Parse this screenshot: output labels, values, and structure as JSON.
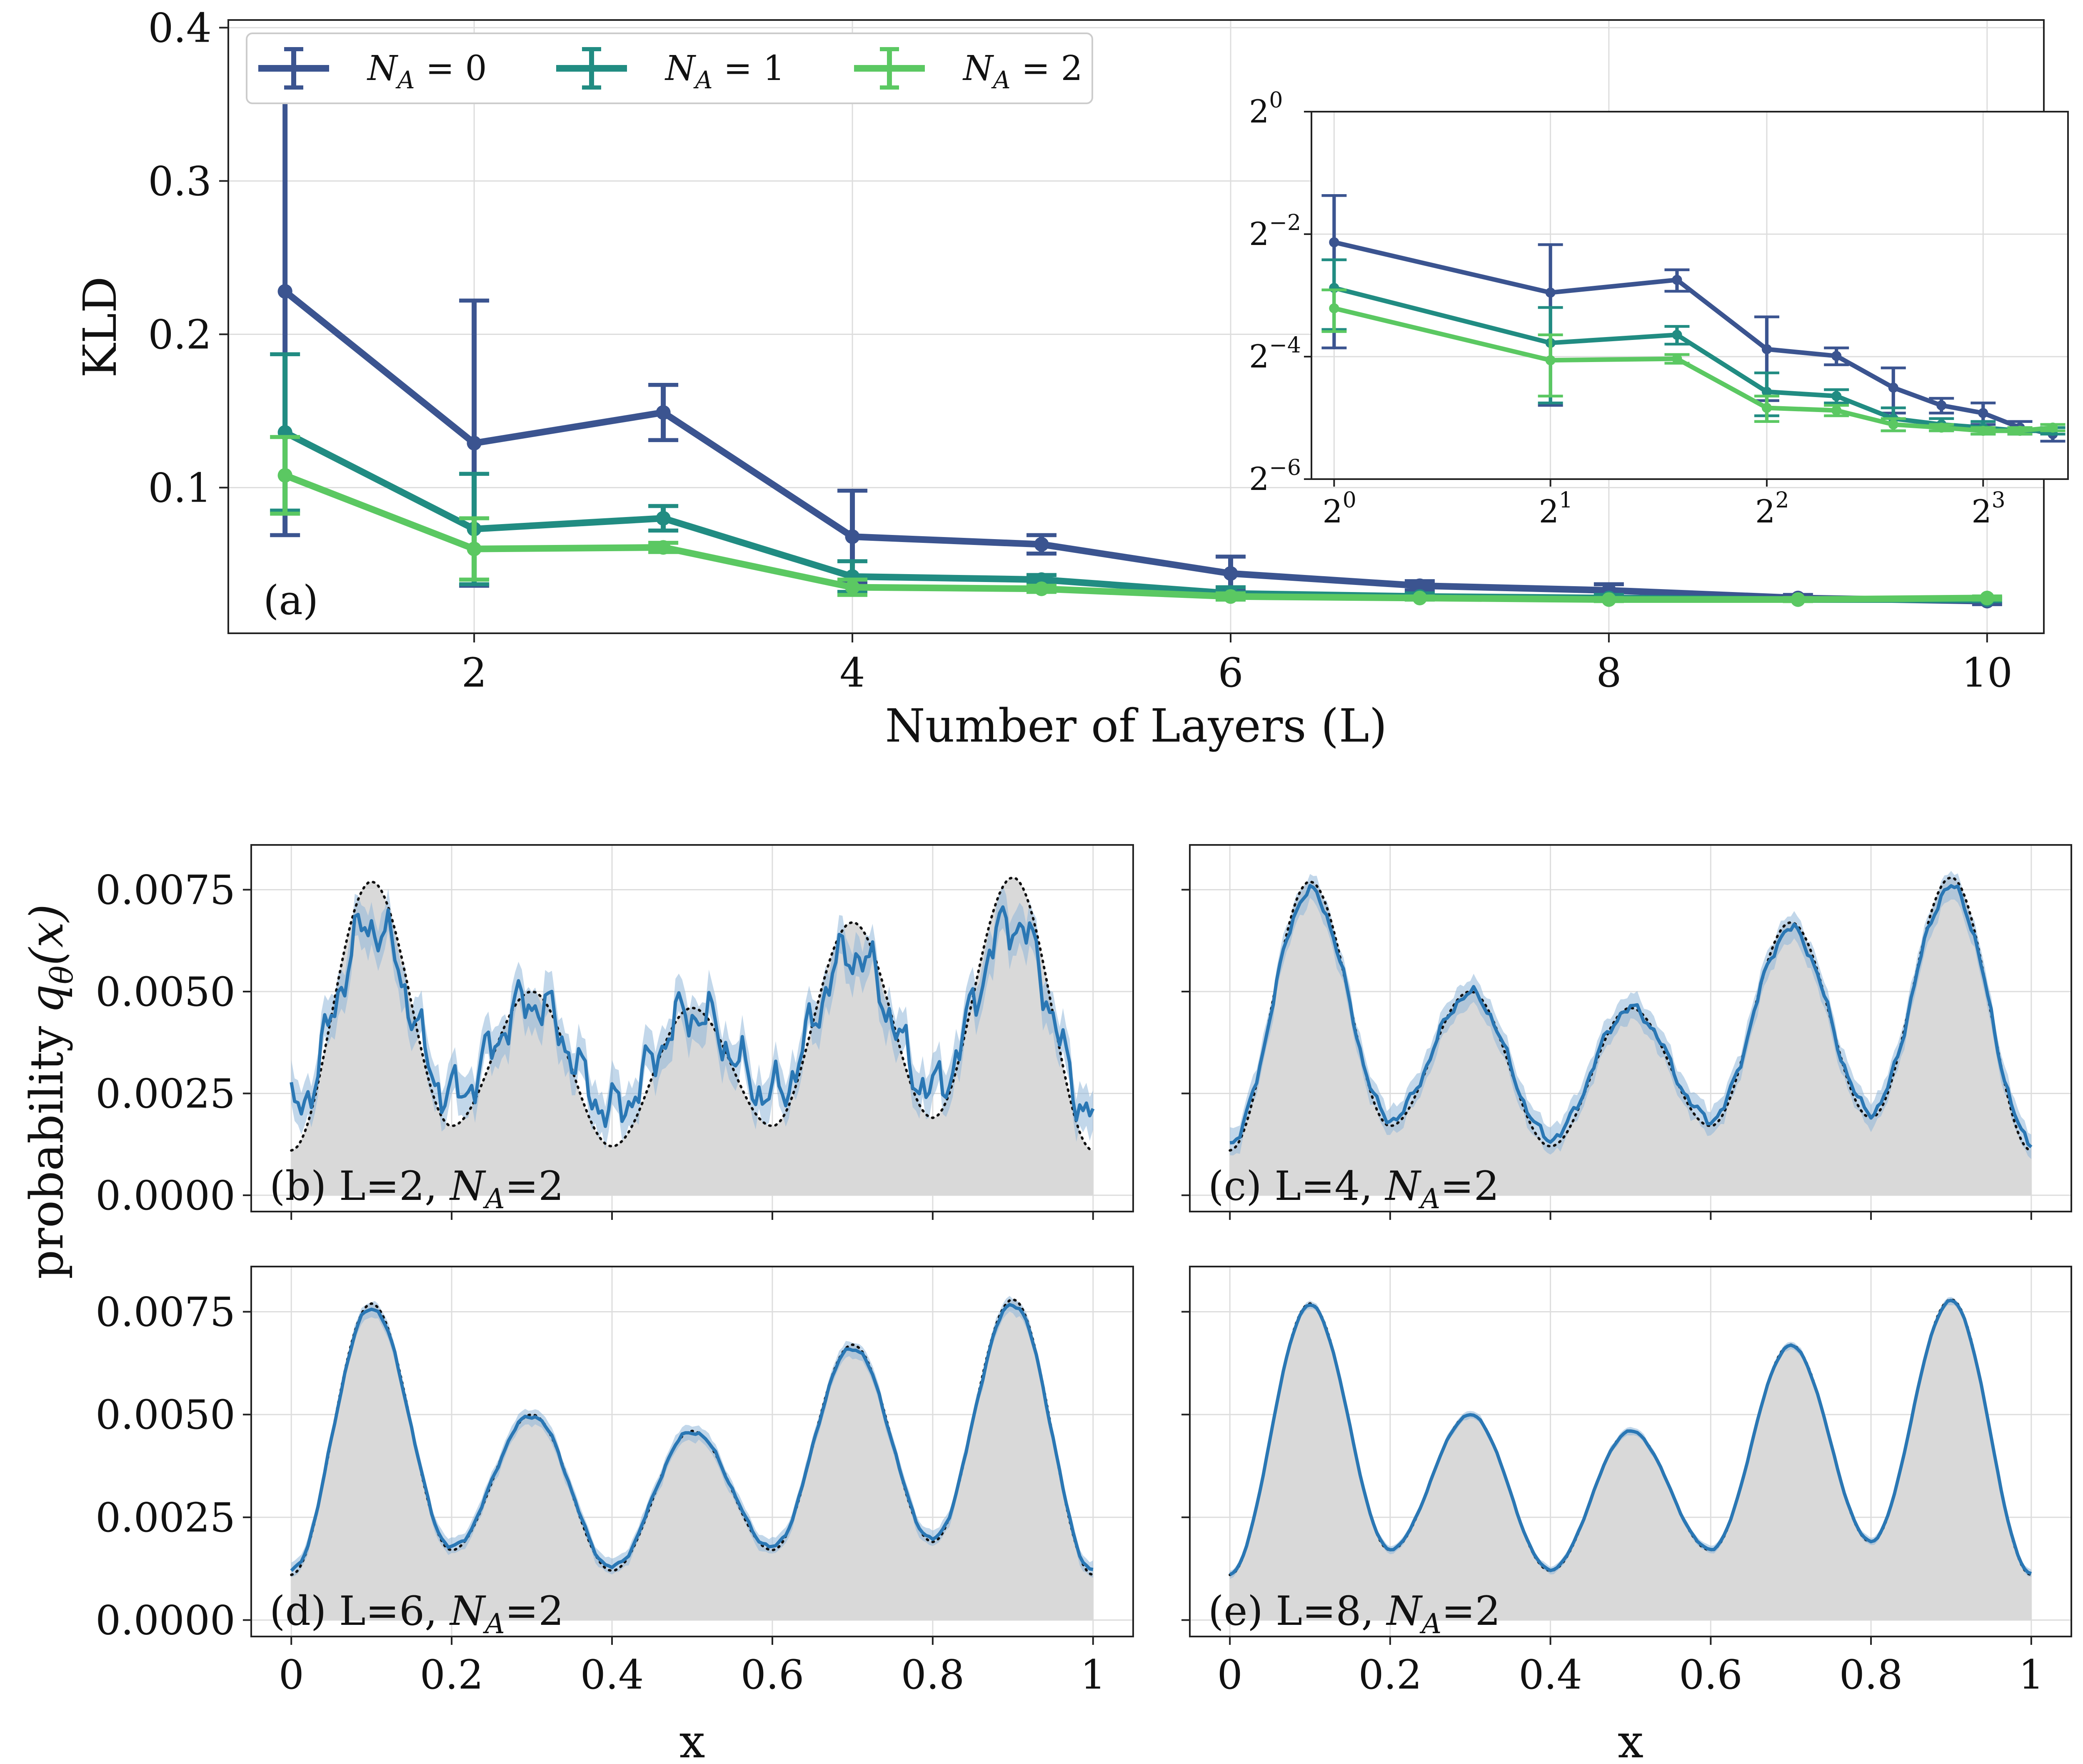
{
  "colors": {
    "N0": "#3b5490",
    "N1": "#218c82",
    "N2": "#5bc862",
    "model": "#2a77b4",
    "band": "#8fb6d8",
    "target_fill": "#d9d9d9",
    "target_line": "#111111"
  },
  "chart_data": [
    {
      "type": "line",
      "panel": "(a)",
      "xlabel": "Number of Layers (L)",
      "ylabel": "KLD",
      "x": [
        1,
        2,
        3,
        4,
        5,
        6,
        7,
        8,
        9,
        10
      ],
      "xlim": [
        0.7,
        10.3
      ],
      "ylim": [
        0.005,
        0.405
      ],
      "xticks": [
        2,
        4,
        6,
        8,
        10
      ],
      "xtick_labels": [
        "2",
        "4",
        "6",
        "8",
        "10"
      ],
      "yticks": [
        0.1,
        0.2,
        0.3,
        0.4
      ],
      "ytick_labels": [
        "0.1",
        "0.2",
        "0.3",
        "0.4"
      ],
      "grid": true,
      "legend": {
        "placement": "top-left",
        "columns": 3
      },
      "series": [
        {
          "key": "N0",
          "name": "N_A = 0",
          "name_sub": [
            "N",
            "A",
            " = 0"
          ],
          "values": [
            0.228,
            0.129,
            0.149,
            0.068,
            0.063,
            0.044,
            0.036,
            0.033,
            0.028,
            0.026
          ],
          "err": [
            0.159,
            0.093,
            0.018,
            0.03,
            0.006,
            0.011,
            0.003,
            0.004,
            0.002,
            0.002
          ]
        },
        {
          "key": "N1",
          "name": "N_A = 1",
          "name_sub": [
            "N",
            "A",
            " = 1"
          ],
          "values": [
            0.136,
            0.073,
            0.08,
            0.042,
            0.04,
            0.031,
            0.029,
            0.028,
            0.027,
            0.027
          ],
          "err": [
            0.051,
            0.036,
            0.008,
            0.01,
            0.003,
            0.004,
            0.002,
            0.002,
            0.001,
            0.001
          ]
        },
        {
          "key": "N2",
          "name": "N_A = 2",
          "name_sub": [
            "N",
            "A",
            " = 2"
          ],
          "values": [
            0.108,
            0.06,
            0.061,
            0.035,
            0.034,
            0.029,
            0.028,
            0.027,
            0.027,
            0.028
          ],
          "err": [
            0.025,
            0.02,
            0.003,
            0.005,
            0.002,
            0.002,
            0.001,
            0.001,
            0.001,
            0.001
          ]
        }
      ]
    },
    {
      "type": "line",
      "panel": "inset",
      "scale": "log2",
      "x": [
        1,
        2,
        3,
        4,
        5,
        6,
        7,
        8,
        9,
        10
      ],
      "xlim": [
        0.93,
        10.5
      ],
      "ylim": [
        0.015625,
        1
      ],
      "xticks": [
        1,
        2,
        4,
        8
      ],
      "xtick_labels": [
        [
          "2",
          "0"
        ],
        [
          "2",
          "1"
        ],
        [
          "2",
          "2"
        ],
        [
          "2",
          "3"
        ]
      ],
      "yticks": [
        0.015625,
        0.0625,
        0.25,
        1
      ],
      "ytick_labels": [
        [
          "2",
          "−6"
        ],
        [
          "2",
          "−4"
        ],
        [
          "2",
          "−2"
        ],
        [
          "2",
          "0"
        ]
      ],
      "grid": true
    },
    {
      "type": "area",
      "panels": [
        {
          "label_pre": "(b) L=2, ",
          "label_n": "N",
          "label_sub": "A",
          "label_post": "=2",
          "L": 2,
          "noise": 0.00085,
          "band": 0.00055,
          "bias": 0.3
        },
        {
          "label_pre": "(c) L=4, ",
          "label_n": "N",
          "label_sub": "A",
          "label_post": "=2",
          "L": 4,
          "noise": 0.0002,
          "band": 0.00035,
          "bias": 0.07
        },
        {
          "label_pre": "(d) L=6, ",
          "label_n": "N",
          "label_sub": "A",
          "label_post": "=2",
          "L": 6,
          "noise": 8e-05,
          "band": 0.0002,
          "bias": 0.03
        },
        {
          "label_pre": "(e) L=8, ",
          "label_n": "N",
          "label_sub": "A",
          "label_post": "=2",
          "L": 8,
          "noise": 3e-05,
          "band": 0.0001,
          "bias": 0.01
        }
      ],
      "target_peaks": [
        {
          "x": 0.1,
          "y": 0.0077
        },
        {
          "x": 0.3,
          "y": 0.005
        },
        {
          "x": 0.5,
          "y": 0.0046
        },
        {
          "x": 0.7,
          "y": 0.0067
        },
        {
          "x": 0.9,
          "y": 0.0078
        }
      ],
      "target_troughs": [
        {
          "x": 0.0,
          "y": 0.0011
        },
        {
          "x": 0.2,
          "y": 0.0017
        },
        {
          "x": 0.4,
          "y": 0.0012
        },
        {
          "x": 0.6,
          "y": 0.0017
        },
        {
          "x": 0.8,
          "y": 0.0019
        },
        {
          "x": 1.0,
          "y": 0.0011
        }
      ],
      "xlim": [
        -0.05,
        1.05
      ],
      "ylim": [
        -0.0004,
        0.0086
      ],
      "xlabel": "x",
      "ylabel_text": "probability",
      "ylabel_math": [
        "q",
        "θ",
        "(x)"
      ],
      "xticks": [
        0,
        0.2,
        0.4,
        0.6,
        0.8,
        1
      ],
      "xtick_labels": [
        "0",
        "0.2",
        "0.4",
        "0.6",
        "0.8",
        "1"
      ],
      "yticks": [
        0,
        0.0025,
        0.005,
        0.0075
      ],
      "ytick_labels": [
        "0.0000",
        "0.0025",
        "0.0050",
        "0.0075"
      ],
      "grid": true
    }
  ]
}
